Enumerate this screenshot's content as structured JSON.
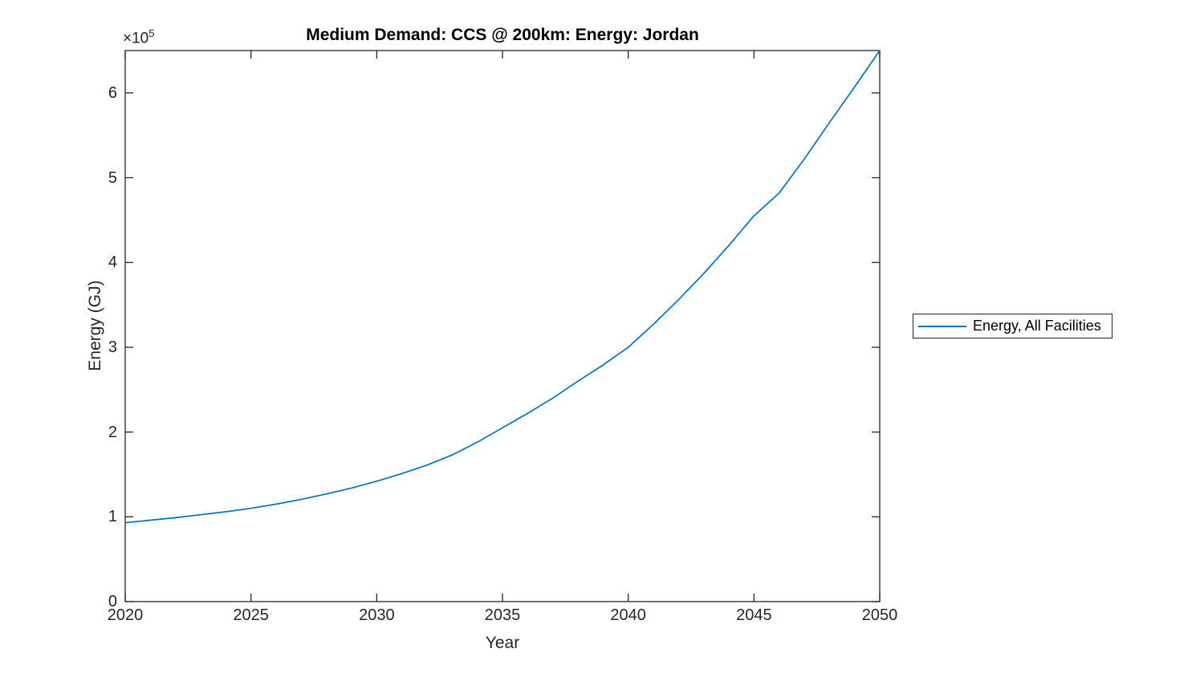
{
  "title": "Medium Demand: CCS @ 200km: Energy: Jordan",
  "axes": {
    "xlabel": "Year",
    "ylabel": "Energy (GJ)",
    "y_multiplier_base": "×10",
    "y_multiplier_exp": "5"
  },
  "legend": {
    "entries": [
      {
        "label": "Energy, All Facilities",
        "color": "#0072BD"
      }
    ]
  },
  "colors": {
    "line": "#0072BD",
    "axis": "#262626",
    "title": "#000000",
    "background": "#ffffff"
  },
  "chart_data": {
    "type": "line",
    "title": "Medium Demand: CCS @ 200km: Energy: Jordan",
    "xlabel": "Year",
    "ylabel": "Energy (GJ)",
    "xlim": [
      2020,
      2050
    ],
    "ylim": [
      0,
      650000
    ],
    "xticks": [
      2020,
      2025,
      2030,
      2035,
      2040,
      2045,
      2050
    ],
    "yticks": [
      0,
      100000,
      200000,
      300000,
      400000,
      500000,
      600000
    ],
    "ytick_labels": [
      "0",
      "1",
      "2",
      "3",
      "4",
      "5",
      "6"
    ],
    "y_axis_multiplier": "×10^5",
    "grid": false,
    "legend_position": "right-outside",
    "series": [
      {
        "name": "Energy, All Facilities",
        "color": "#0072BD",
        "x": [
          2020,
          2021,
          2022,
          2023,
          2024,
          2025,
          2026,
          2027,
          2028,
          2029,
          2030,
          2031,
          2032,
          2033,
          2034,
          2035,
          2036,
          2037,
          2038,
          2039,
          2040,
          2041,
          2042,
          2043,
          2044,
          2045,
          2046,
          2047,
          2048,
          2049,
          2050
        ],
        "values": [
          93000,
          96000,
          99000,
          102500,
          106000,
          110000,
          115000,
          120500,
          127000,
          134000,
          142000,
          151000,
          161000,
          173000,
          188000,
          205000,
          222000,
          240000,
          260000,
          279000,
          300000,
          327000,
          356000,
          387000,
          420000,
          455000,
          482000,
          522000,
          565000,
          607000,
          650000
        ]
      }
    ]
  }
}
